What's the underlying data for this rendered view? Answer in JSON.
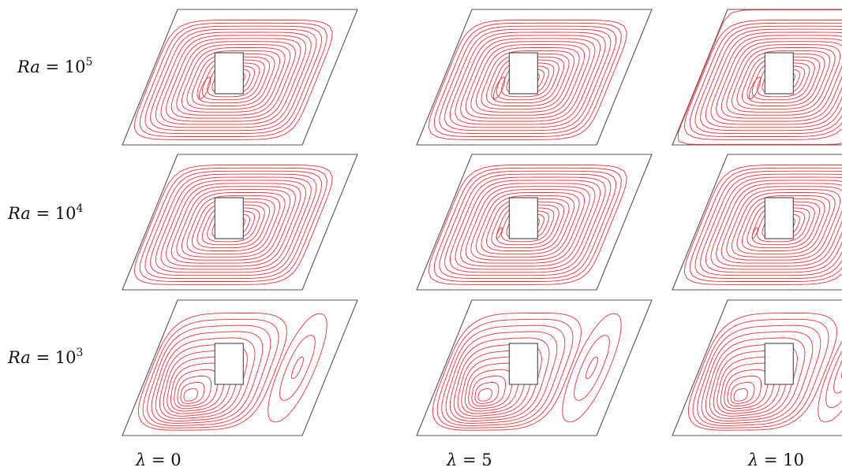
{
  "row_labels": [
    {
      "base": "Ra",
      "eq": " = 10",
      "exp": "5"
    },
    {
      "base": "Ra",
      "eq": " = 10",
      "exp": "4"
    },
    {
      "base": "Ra",
      "eq": " = 10",
      "exp": "3"
    }
  ],
  "column_labels": [
    {
      "symbol": "λ",
      "eq": " = 0"
    },
    {
      "symbol": "λ",
      "eq": " = 5"
    },
    {
      "symbol": "λ",
      "eq": " = 10"
    }
  ],
  "colors": {
    "streamline": "#f0313a",
    "cavity_outline": "#555555",
    "block_outline": "#444444"
  },
  "panels": [
    {
      "row": 0,
      "col": 0,
      "ra_exponent": 5,
      "lambda": 0,
      "pattern": "single-cell",
      "inner_eddy": "small",
      "wall_layers": false
    },
    {
      "row": 0,
      "col": 1,
      "ra_exponent": 5,
      "lambda": 5,
      "pattern": "single-cell",
      "inner_eddy": "small",
      "wall_layers": false
    },
    {
      "row": 0,
      "col": 2,
      "ra_exponent": 5,
      "lambda": 10,
      "pattern": "single-cell",
      "inner_eddy": "small",
      "wall_layers": true
    },
    {
      "row": 1,
      "col": 0,
      "ra_exponent": 4,
      "lambda": 0,
      "pattern": "single-cell",
      "inner_eddy": "none",
      "wall_layers": false
    },
    {
      "row": 1,
      "col": 1,
      "ra_exponent": 4,
      "lambda": 5,
      "pattern": "single-cell",
      "inner_eddy": "tiny",
      "wall_layers": false
    },
    {
      "row": 1,
      "col": 2,
      "ra_exponent": 4,
      "lambda": 10,
      "pattern": "single-cell",
      "inner_eddy": "tiny",
      "wall_layers": false
    },
    {
      "row": 2,
      "col": 0,
      "ra_exponent": 3,
      "lambda": 0,
      "pattern": "two-cell",
      "inner_eddy": "lower-left",
      "wall_layers": false
    },
    {
      "row": 2,
      "col": 1,
      "ra_exponent": 3,
      "lambda": 5,
      "pattern": "two-cell",
      "inner_eddy": "lower-left",
      "wall_layers": false
    },
    {
      "row": 2,
      "col": 2,
      "ra_exponent": 3,
      "lambda": 10,
      "pattern": "two-cell",
      "inner_eddy": "lower-left",
      "wall_layers": false
    }
  ]
}
